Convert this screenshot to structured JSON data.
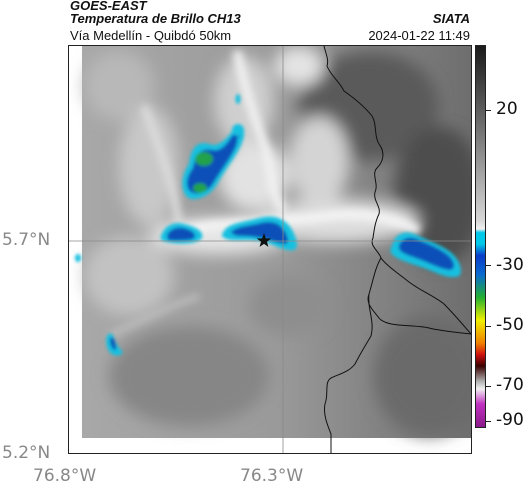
{
  "header": {
    "source": "GOES-EAST",
    "product": "Temperatura de Brillo CH13",
    "organization": "SIATA",
    "location": "Vía Medellín - Quibdó 50km",
    "datetime": "2024-01-22 11:49"
  },
  "map": {
    "lat_labels": [
      "5.7°N",
      "5.2°N"
    ],
    "lon_labels": [
      "76.8°W",
      "76.3°W"
    ],
    "marker_icon": "star-icon",
    "colors": {
      "cold_blue": "#0a4fb8",
      "cyan": "#18c0e0",
      "green": "#22a24a",
      "border_line": "#111111"
    }
  },
  "colorbar": {
    "labels": [
      "20",
      "-30",
      "-50",
      "-70",
      "-90"
    ],
    "colors": {
      "warm": "#1a1a1a",
      "mid": "#d8d8d8",
      "cyan": "#00c8e8",
      "blue": "#0a3cc8",
      "green": "#22b030",
      "yellow": "#f0f000",
      "orange": "#f08000",
      "red": "#d01010",
      "dark": "#3a0000",
      "magenta": "#c030c0"
    }
  }
}
